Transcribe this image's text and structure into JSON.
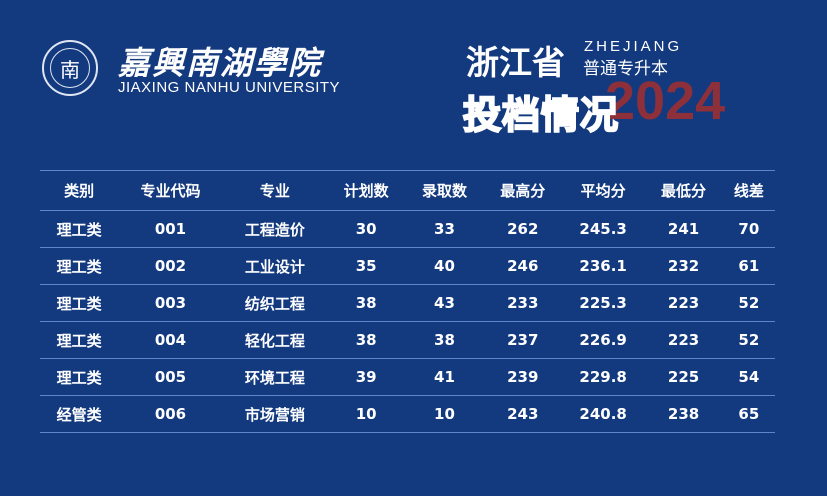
{
  "logo": {
    "cn": "嘉興南湖學院",
    "en": "JIAXING NANHU UNIVERSITY",
    "emblem": "南"
  },
  "title": {
    "province": "浙江省",
    "pinyin": "ZHEJIANG",
    "subtitle": "普通专升本",
    "heading": "投档情况",
    "year": "2024"
  },
  "colors": {
    "background": "#13397f",
    "year": "#9b3033",
    "rule": "#5b86c9"
  },
  "table": {
    "headers": [
      "类别",
      "专业代码",
      "专业",
      "计划数",
      "录取数",
      "最高分",
      "平均分",
      "最低分",
      "线差"
    ],
    "rows": [
      [
        "理工类",
        "001",
        "工程造价",
        "30",
        "33",
        "262",
        "245.3",
        "241",
        "70"
      ],
      [
        "理工类",
        "002",
        "工业设计",
        "35",
        "40",
        "246",
        "236.1",
        "232",
        "61"
      ],
      [
        "理工类",
        "003",
        "纺织工程",
        "38",
        "43",
        "233",
        "225.3",
        "223",
        "52"
      ],
      [
        "理工类",
        "004",
        "轻化工程",
        "38",
        "38",
        "237",
        "226.9",
        "223",
        "52"
      ],
      [
        "理工类",
        "005",
        "环境工程",
        "39",
        "41",
        "239",
        "229.8",
        "225",
        "54"
      ],
      [
        "经管类",
        "006",
        "市场营销",
        "10",
        "10",
        "243",
        "240.8",
        "238",
        "65"
      ]
    ]
  }
}
